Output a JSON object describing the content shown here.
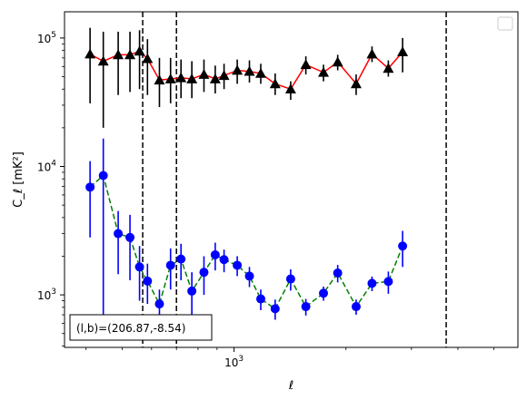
{
  "chart_data": {
    "type": "scatter",
    "title": "",
    "xlabel": "ℓ",
    "ylabel": "C_ℓ [mK²]",
    "x_scale": "log",
    "y_scale": "log",
    "xlim": [
      350,
      5800
    ],
    "ylim": [
      390,
      160000
    ],
    "x_major_ticks": [
      {
        "value": 1000,
        "base": "10",
        "exp": "3"
      }
    ],
    "y_major_ticks": [
      {
        "value": 1000,
        "base": "10",
        "exp": "3"
      },
      {
        "value": 10000,
        "base": "10",
        "exp": "4"
      },
      {
        "value": 100000,
        "base": "10",
        "exp": "5"
      }
    ],
    "grid": false,
    "legend": "empty box at top-right",
    "vertical_dashed_lines_x": [
      568,
      700,
      3720
    ],
    "annotation": "(l,b)=(206.87,-8.54)",
    "series": [
      {
        "marker": "triangle",
        "marker_color": "#000000",
        "errorbar_color": "#000000",
        "line_color": "#ff0000",
        "line_style": "solid",
        "points": [
          {
            "x": 410,
            "y": 75000,
            "lo": 31000,
            "hi": 120000
          },
          {
            "x": 445,
            "y": 66000,
            "lo": 20000,
            "hi": 112000
          },
          {
            "x": 488,
            "y": 74000,
            "lo": 36000,
            "hi": 112000
          },
          {
            "x": 525,
            "y": 74000,
            "lo": 38000,
            "hi": 112000
          },
          {
            "x": 557,
            "y": 79000,
            "lo": 40000,
            "hi": 115000
          },
          {
            "x": 585,
            "y": 69000,
            "lo": 36000,
            "hi": 98000
          },
          {
            "x": 630,
            "y": 47000,
            "lo": 29000,
            "hi": 70000
          },
          {
            "x": 675,
            "y": 48000,
            "lo": 31000,
            "hi": 70000
          },
          {
            "x": 720,
            "y": 49000,
            "lo": 34000,
            "hi": 68000
          },
          {
            "x": 770,
            "y": 48000,
            "lo": 34000,
            "hi": 66000
          },
          {
            "x": 830,
            "y": 52000,
            "lo": 38000,
            "hi": 68000
          },
          {
            "x": 890,
            "y": 48000,
            "lo": 37000,
            "hi": 61000
          },
          {
            "x": 940,
            "y": 51000,
            "lo": 40000,
            "hi": 63000
          },
          {
            "x": 1020,
            "y": 56000,
            "lo": 44000,
            "hi": 68000
          },
          {
            "x": 1100,
            "y": 55000,
            "lo": 45000,
            "hi": 67000
          },
          {
            "x": 1180,
            "y": 53000,
            "lo": 44000,
            "hi": 63000
          },
          {
            "x": 1290,
            "y": 44000,
            "lo": 36000,
            "hi": 53000
          },
          {
            "x": 1420,
            "y": 40000,
            "lo": 33000,
            "hi": 46000
          },
          {
            "x": 1560,
            "y": 62000,
            "lo": 52000,
            "hi": 72000
          },
          {
            "x": 1740,
            "y": 54000,
            "lo": 46000,
            "hi": 62000
          },
          {
            "x": 1900,
            "y": 65000,
            "lo": 56000,
            "hi": 74000
          },
          {
            "x": 2130,
            "y": 44000,
            "lo": 36000,
            "hi": 52000
          },
          {
            "x": 2350,
            "y": 75000,
            "lo": 65000,
            "hi": 86000
          },
          {
            "x": 2600,
            "y": 58000,
            "lo": 50000,
            "hi": 67000
          },
          {
            "x": 2840,
            "y": 78000,
            "lo": 54000,
            "hi": 100000
          }
        ]
      },
      {
        "marker": "circle",
        "marker_color": "#0000ff",
        "errorbar_color": "#0000ff",
        "line_color": "#008000",
        "line_style": "dashed",
        "points": [
          {
            "x": 410,
            "y": 6900,
            "lo": 2800,
            "hi": 11000
          },
          {
            "x": 445,
            "y": 8500,
            "lo": 500,
            "hi": 16500
          },
          {
            "x": 488,
            "y": 3000,
            "lo": 1450,
            "hi": 4500
          },
          {
            "x": 525,
            "y": 2800,
            "lo": 1300,
            "hi": 4200
          },
          {
            "x": 557,
            "y": 1650,
            "lo": 900,
            "hi": 2400
          },
          {
            "x": 585,
            "y": 1280,
            "lo": 850,
            "hi": 1750
          },
          {
            "x": 630,
            "y": 850,
            "lo": 600,
            "hi": 1100
          },
          {
            "x": 675,
            "y": 1700,
            "lo": 1100,
            "hi": 2300
          },
          {
            "x": 720,
            "y": 1900,
            "lo": 1300,
            "hi": 2500
          },
          {
            "x": 770,
            "y": 1070,
            "lo": 640,
            "hi": 1500
          },
          {
            "x": 830,
            "y": 1500,
            "lo": 1000,
            "hi": 2000
          },
          {
            "x": 890,
            "y": 2050,
            "lo": 1550,
            "hi": 2550
          },
          {
            "x": 940,
            "y": 1880,
            "lo": 1500,
            "hi": 2250
          },
          {
            "x": 1020,
            "y": 1700,
            "lo": 1400,
            "hi": 2000
          },
          {
            "x": 1100,
            "y": 1400,
            "lo": 1150,
            "hi": 1650
          },
          {
            "x": 1180,
            "y": 930,
            "lo": 760,
            "hi": 1100
          },
          {
            "x": 1290,
            "y": 780,
            "lo": 640,
            "hi": 920
          },
          {
            "x": 1420,
            "y": 1330,
            "lo": 1080,
            "hi": 1580
          },
          {
            "x": 1560,
            "y": 810,
            "lo": 690,
            "hi": 930
          },
          {
            "x": 1740,
            "y": 1030,
            "lo": 900,
            "hi": 1160
          },
          {
            "x": 1900,
            "y": 1480,
            "lo": 1250,
            "hi": 1710
          },
          {
            "x": 2130,
            "y": 810,
            "lo": 700,
            "hi": 920
          },
          {
            "x": 2350,
            "y": 1230,
            "lo": 1070,
            "hi": 1390
          },
          {
            "x": 2600,
            "y": 1270,
            "lo": 1020,
            "hi": 1520
          },
          {
            "x": 2840,
            "y": 2400,
            "lo": 1650,
            "hi": 3150
          }
        ]
      }
    ]
  }
}
